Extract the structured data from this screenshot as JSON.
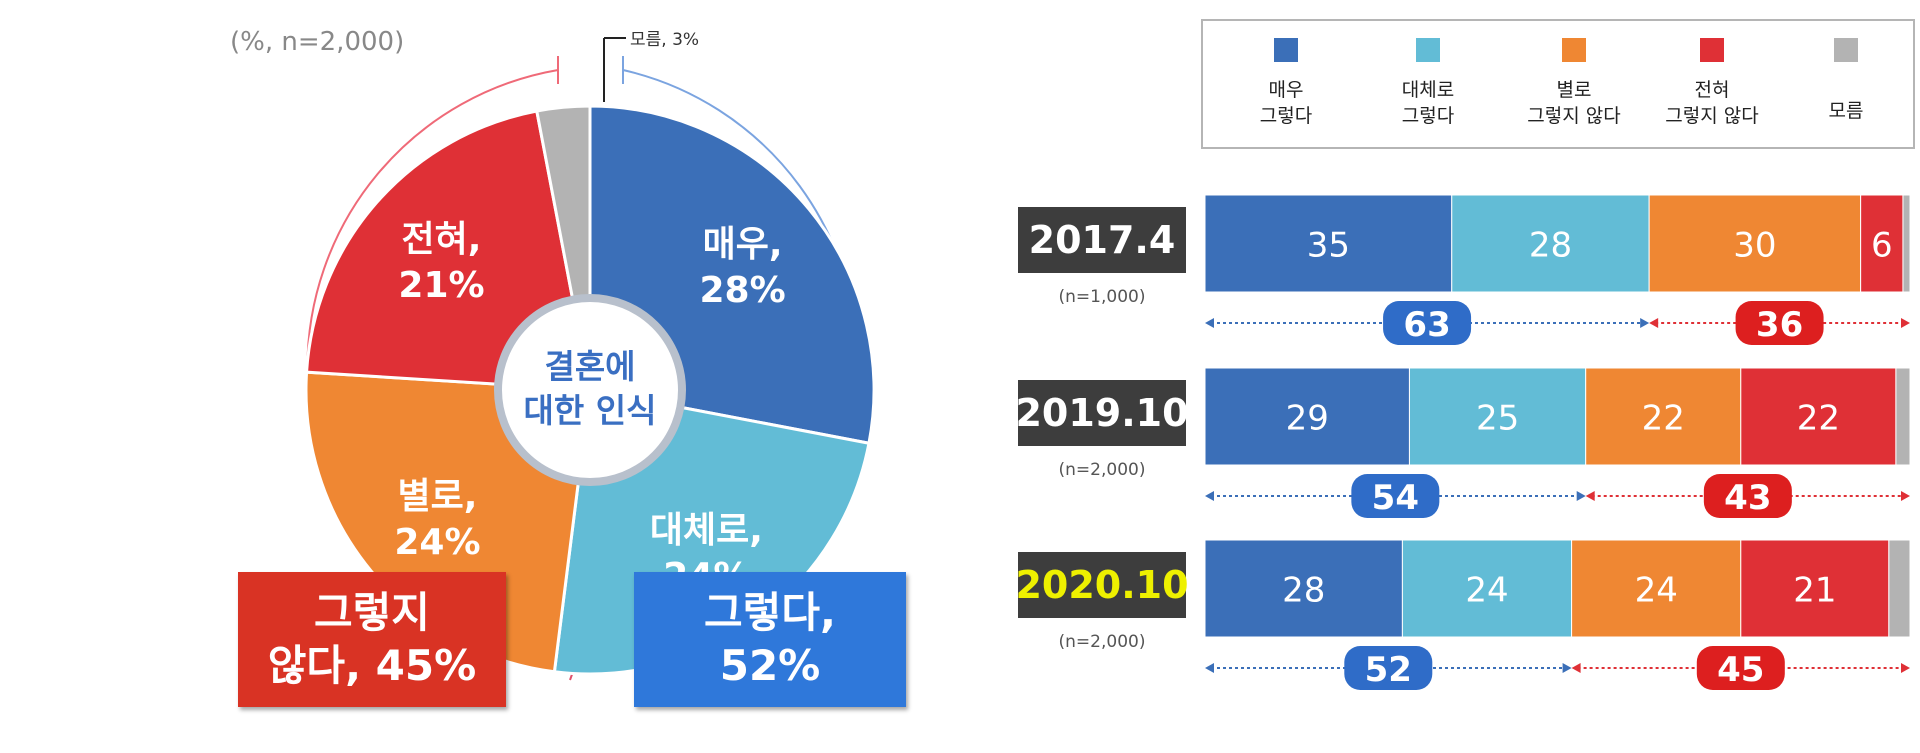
{
  "colors": {
    "very_yes": "#3b6fb8",
    "somewhat_yes": "#62bcd6",
    "not_really": "#ef8733",
    "not_at_all": "#df3036",
    "dont_know": "#b3b3b3",
    "yes_box": "#2f78da",
    "no_box": "#d93324"
  },
  "chart_data": [
    {
      "type": "pie",
      "note": "(%, n=2,000)",
      "center_label": [
        "결혼에",
        "대한 인식"
      ],
      "slices": [
        {
          "label": "매우,",
          "value": 28,
          "value_label": "28%"
        },
        {
          "label": "대체로,",
          "value": 24,
          "value_label": "24%"
        },
        {
          "label": "별로,",
          "value": 24,
          "value_label": "24%"
        },
        {
          "label": "전혀,",
          "value": 21,
          "value_label": "21%"
        },
        {
          "label": "모름,",
          "value": 3,
          "value_label": "3%"
        }
      ],
      "group_labels": {
        "yes": "그렇다,\n52%",
        "no": "그렇지\n않다, 45%"
      }
    },
    {
      "type": "bar",
      "orientation": "horizontal-stacked",
      "legend": [
        "매우\n그렇다",
        "대체로\n그렇다",
        "별로\n그렇지 않다",
        "전혀\n그렇지 않다",
        "모름"
      ],
      "legend_position": "top-right",
      "categories": [
        "2017.4",
        "2019.10",
        "2020.10"
      ],
      "sample_sizes": [
        "(n=1,000)",
        "(n=2,000)",
        "(n=2,000)"
      ],
      "series": [
        {
          "name": "매우\n그렇다",
          "values": [
            35,
            29,
            28
          ]
        },
        {
          "name": "대체로\n그렇다",
          "values": [
            28,
            25,
            24
          ]
        },
        {
          "name": "별로\n그렇지 않다",
          "values": [
            30,
            22,
            24
          ]
        },
        {
          "name": "전혀\n그렇지 않다",
          "values": [
            6,
            22,
            21
          ]
        },
        {
          "name": "모름",
          "values": [
            1,
            2,
            3
          ]
        }
      ],
      "bar_labels": [
        [
          "35",
          "28",
          "30",
          "6"
        ],
        [
          "29",
          "25",
          "22",
          "22"
        ],
        [
          "28",
          "24",
          "24",
          "21"
        ]
      ],
      "positive_totals": [
        "63",
        "54",
        "52"
      ],
      "negative_totals": [
        "36",
        "43",
        "45"
      ],
      "highlighted_category": "2020.10"
    }
  ]
}
